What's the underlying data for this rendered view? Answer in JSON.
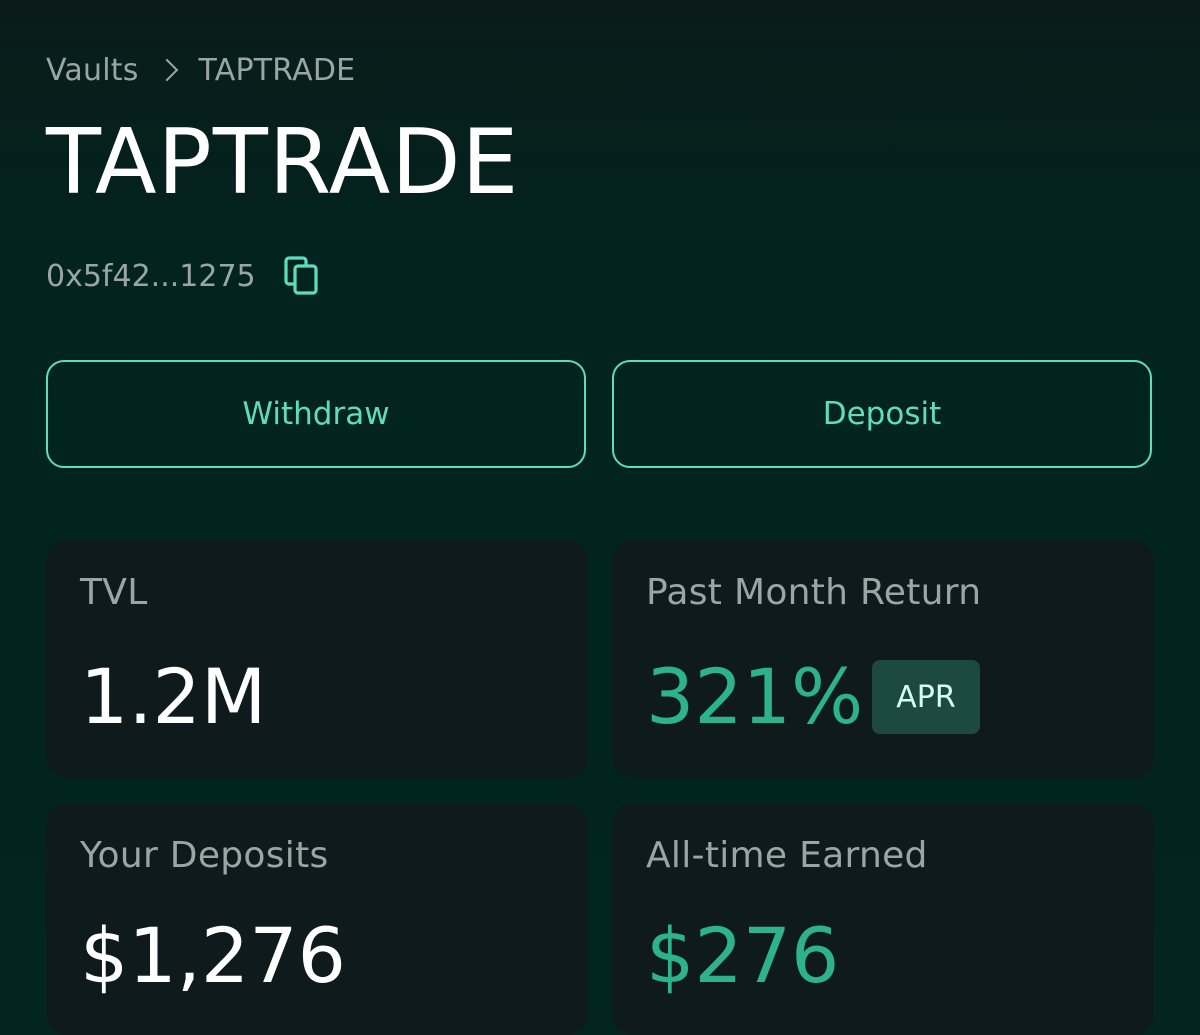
{
  "breadcrumb": {
    "root": "Vaults",
    "current": "TAPTRADE"
  },
  "vault": {
    "title": "TAPTRADE",
    "address": "0x5f42...1275"
  },
  "actions": {
    "withdraw_label": "Withdraw",
    "deposit_label": "Deposit"
  },
  "stats": {
    "tvl": {
      "label": "TVL",
      "value": "1.2M"
    },
    "past_month_return": {
      "label": "Past Month Return",
      "value": "321%",
      "badge": "APR"
    },
    "your_deposits": {
      "label": "Your Deposits",
      "value": "$1,276"
    },
    "all_time_earned": {
      "label": "All-time Earned",
      "value": "$276"
    }
  },
  "icons": {
    "breadcrumb_separator": "chevron-right-icon",
    "copy": "copy-icon"
  },
  "colors": {
    "accent": "#5fdcc0",
    "positive": "#2db38c",
    "card_bg": "#0f1a1d",
    "badge_bg": "#1c4a42",
    "muted_text": "#9aa6a4"
  }
}
